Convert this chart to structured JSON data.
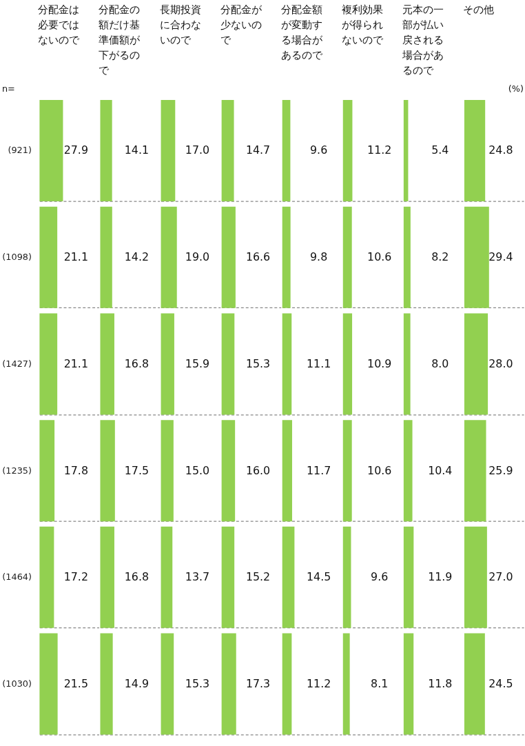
{
  "chart_data": [
    {
      "type": "bar",
      "orientation": "horizontal",
      "title": "分配金は必要ではないので",
      "categories": [
        "(921)",
        "(1098)",
        "(1427)",
        "(1235)",
        "(1464)",
        "(1030)"
      ],
      "values": [
        27.9,
        21.1,
        21.1,
        17.8,
        17.2,
        21.5
      ],
      "value_labels": [
        "27.9",
        "21.1",
        "21.1",
        "17.8",
        "17.2",
        "21.5"
      ],
      "color": "#92d050",
      "grid": "y",
      "tick_labels": "y",
      "annotations": [
        "n="
      ]
    },
    {
      "type": "bar",
      "orientation": "horizontal",
      "title": "分配金の額だけ基準価額が下がるので",
      "categories": [
        null,
        null,
        null,
        null,
        null,
        null
      ],
      "values": [
        14.1,
        14.2,
        16.8,
        17.5,
        16.8,
        14.9
      ],
      "value_labels": [
        "14.1",
        "14.2",
        "16.8",
        "17.5",
        "16.8",
        "14.9"
      ],
      "color": "#92d050",
      "grid": "y",
      "tick_labels": false
    },
    {
      "type": "bar",
      "orientation": "horizontal",
      "title": "長期投資に合わないので",
      "categories": [
        null,
        null,
        null,
        null,
        null,
        null
      ],
      "values": [
        17.0,
        19.0,
        15.9,
        15.0,
        13.7,
        15.3
      ],
      "value_labels": [
        "17.0",
        "19.0",
        "15.9",
        "15.0",
        "13.7",
        "15.3"
      ],
      "color": "#92d050",
      "grid": "y",
      "tick_labels": false
    },
    {
      "type": "bar",
      "orientation": "horizontal",
      "title": "分配金が少ないので",
      "categories": [
        null,
        null,
        null,
        null,
        null,
        null
      ],
      "values": [
        14.7,
        16.6,
        15.3,
        16.0,
        15.2,
        17.3
      ],
      "value_labels": [
        "14.7",
        "16.6",
        "15.3",
        "16.0",
        "15.2",
        "17.3"
      ],
      "color": "#92d050",
      "grid": "y",
      "tick_labels": false
    },
    {
      "type": "bar",
      "orientation": "horizontal",
      "title": "分配金額が変動する場合があるので",
      "categories": [
        null,
        null,
        null,
        null,
        null,
        null
      ],
      "values": [
        9.6,
        9.8,
        11.1,
        11.7,
        14.5,
        11.2
      ],
      "value_labels": [
        "9.6",
        "9.8",
        "11.1",
        "11.7",
        "14.5",
        "11.2"
      ],
      "color": "#92d050",
      "grid": "y",
      "tick_labels": false
    },
    {
      "type": "bar",
      "orientation": "horizontal",
      "title": "複利効果が得られないので",
      "categories": [
        null,
        null,
        null,
        null,
        null,
        null
      ],
      "values": [
        11.2,
        10.6,
        10.9,
        10.6,
        9.6,
        8.1
      ],
      "value_labels": [
        "11.2",
        "10.6",
        "10.9",
        "10.6",
        "9.6",
        "8.1"
      ],
      "color": "#92d050",
      "grid": "y",
      "tick_labels": false
    },
    {
      "type": "bar",
      "orientation": "horizontal",
      "title": "元本の一部が払い戻される場合があるので",
      "categories": [
        null,
        null,
        null,
        null,
        null,
        null
      ],
      "values": [
        5.4,
        8.2,
        8.0,
        10.4,
        11.9,
        11.8
      ],
      "value_labels": [
        "5.4",
        "8.2",
        "8.0",
        "10.4",
        "11.9",
        "11.8"
      ],
      "color": "#92d050",
      "grid": "y",
      "tick_labels": false
    },
    {
      "type": "bar",
      "orientation": "horizontal",
      "title": "その他",
      "categories": [
        null,
        null,
        null,
        null,
        null,
        null
      ],
      "values": [
        24.8,
        29.4,
        28.0,
        25.9,
        27.0,
        24.5
      ],
      "value_labels": [
        "24.8",
        "29.4",
        "28.0",
        "25.9",
        "27.0",
        "24.5"
      ],
      "color": "#92d050",
      "grid": "y",
      "tick_labels": false,
      "annotations": [
        "(%)"
      ]
    }
  ]
}
